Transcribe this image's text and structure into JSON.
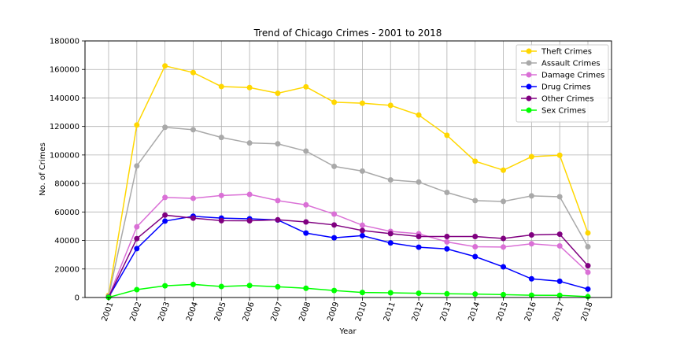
{
  "chart_data": {
    "type": "line",
    "title": "Trend of Chicago Crimes - 2001 to 2018",
    "xlabel": "Year",
    "ylabel": "No. of Crimes",
    "ylim": [
      0,
      180000
    ],
    "yticks": [
      "0",
      "20000",
      "40000",
      "60000",
      "80000",
      "100000",
      "120000",
      "140000",
      "160000",
      "180000"
    ],
    "categories": [
      "2001",
      "2002",
      "2003",
      "2004",
      "2005",
      "2006",
      "2007",
      "2008",
      "2009",
      "2010",
      "2011",
      "2012",
      "2013",
      "2014",
      "2015",
      "2016",
      "2017",
      "2018"
    ],
    "grid": true,
    "legend_position": "top-right",
    "series": [
      {
        "name": "Theft Crimes",
        "color": "#ffd700",
        "values": [
          1500,
          121000,
          162500,
          157800,
          148000,
          147300,
          143300,
          147800,
          137000,
          136300,
          134800,
          128000,
          113800,
          95600,
          89300,
          98800,
          99800,
          45300
        ]
      },
      {
        "name": "Assault Crimes",
        "color": "#a9a9a9",
        "values": [
          800,
          92300,
          119400,
          117700,
          112300,
          108400,
          107800,
          102700,
          92000,
          88700,
          82500,
          81000,
          73700,
          68000,
          67400,
          71300,
          70700,
          35600
        ]
      },
      {
        "name": "Damage Crimes",
        "color": "#da70d6",
        "values": [
          500,
          49600,
          70200,
          69600,
          71600,
          72300,
          68000,
          65000,
          58500,
          50700,
          46400,
          44700,
          39000,
          35600,
          35400,
          37700,
          36200,
          17700
        ]
      },
      {
        "name": "Drug Crimes",
        "color": "#0000ff",
        "values": [
          200,
          34300,
          53600,
          57000,
          55700,
          55200,
          54400,
          45200,
          41900,
          43400,
          38300,
          35300,
          34100,
          28700,
          21500,
          13100,
          11400,
          5900
        ]
      },
      {
        "name": "Other Crimes",
        "color": "#800080",
        "values": [
          300,
          41300,
          57800,
          55700,
          53900,
          53800,
          54500,
          53000,
          50900,
          47000,
          44800,
          42800,
          42800,
          42800,
          41400,
          43900,
          44400,
          22300
        ]
      },
      {
        "name": "Sex Crimes",
        "color": "#00ff00",
        "values": [
          100,
          5500,
          8200,
          9200,
          7700,
          8400,
          7500,
          6500,
          4900,
          3500,
          3300,
          3000,
          2600,
          2400,
          2000,
          1600,
          1500,
          600
        ]
      }
    ]
  }
}
